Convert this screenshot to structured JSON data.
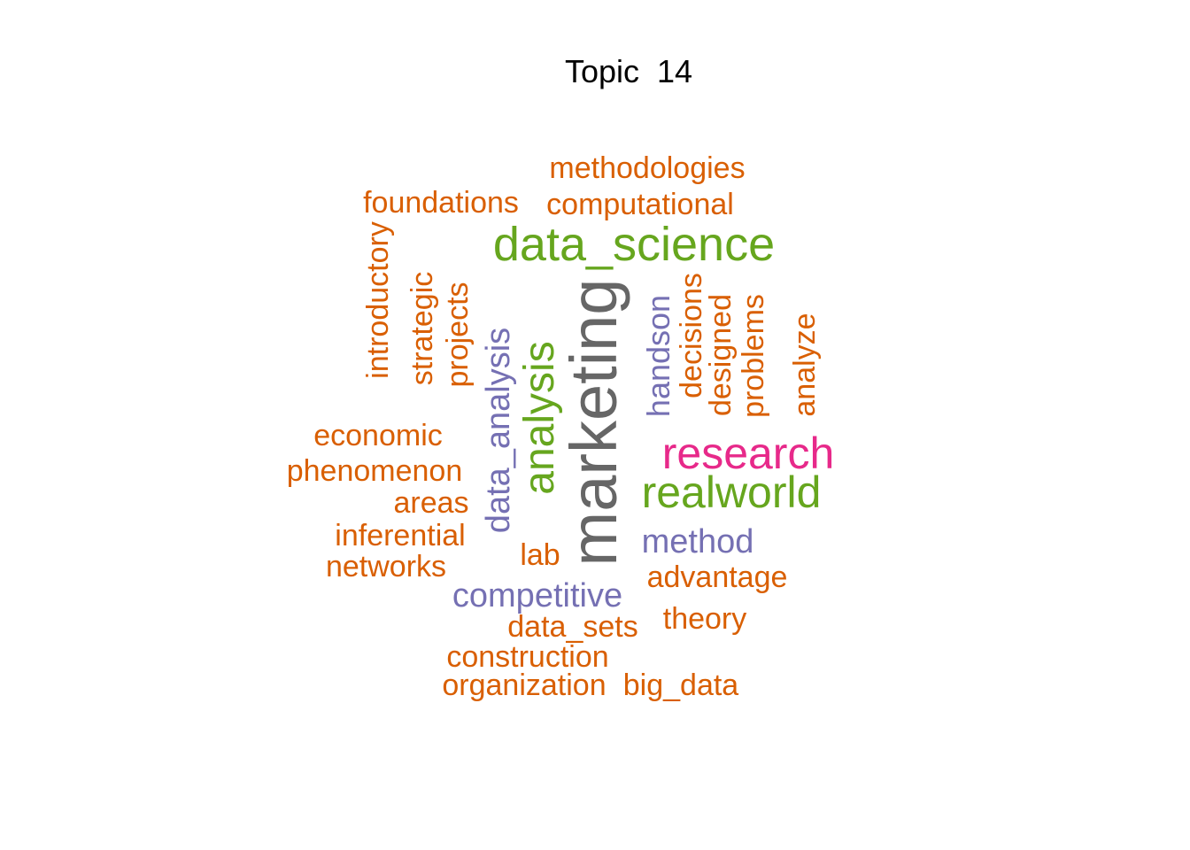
{
  "title": "Topic  14",
  "colors": {
    "orange": "#D95F02",
    "green": "#66A61E",
    "purple": "#7570B3",
    "pink": "#E7298A",
    "gray": "#666666"
  },
  "words": [
    {
      "id": "methodologies",
      "text": "methodologies",
      "color": "orange"
    },
    {
      "id": "foundations",
      "text": "foundations",
      "color": "orange"
    },
    {
      "id": "computational",
      "text": "computational",
      "color": "orange"
    },
    {
      "id": "data_science",
      "text": "data_science",
      "color": "green"
    },
    {
      "id": "introductory",
      "text": "introductory",
      "color": "orange"
    },
    {
      "id": "strategic",
      "text": "strategic",
      "color": "orange"
    },
    {
      "id": "projects",
      "text": "projects",
      "color": "orange"
    },
    {
      "id": "data_analysis",
      "text": "data_analysis",
      "color": "purple"
    },
    {
      "id": "analysis",
      "text": "analysis",
      "color": "green"
    },
    {
      "id": "marketing",
      "text": "marketing",
      "color": "gray"
    },
    {
      "id": "handson",
      "text": "handson",
      "color": "purple"
    },
    {
      "id": "decisions",
      "text": "decisions",
      "color": "orange"
    },
    {
      "id": "designed",
      "text": "designed",
      "color": "orange"
    },
    {
      "id": "problems",
      "text": "problems",
      "color": "orange"
    },
    {
      "id": "analyze",
      "text": "analyze",
      "color": "orange"
    },
    {
      "id": "economic",
      "text": "economic",
      "color": "orange"
    },
    {
      "id": "phenomenon",
      "text": "phenomenon",
      "color": "orange"
    },
    {
      "id": "research",
      "text": "research",
      "color": "pink"
    },
    {
      "id": "realworld",
      "text": "realworld",
      "color": "green"
    },
    {
      "id": "areas",
      "text": "areas",
      "color": "orange"
    },
    {
      "id": "inferential",
      "text": "inferential",
      "color": "orange"
    },
    {
      "id": "lab",
      "text": "lab",
      "color": "orange"
    },
    {
      "id": "method",
      "text": "method",
      "color": "purple"
    },
    {
      "id": "networks",
      "text": "networks",
      "color": "orange"
    },
    {
      "id": "advantage",
      "text": "advantage",
      "color": "orange"
    },
    {
      "id": "competitive",
      "text": "competitive",
      "color": "purple"
    },
    {
      "id": "theory",
      "text": "theory",
      "color": "orange"
    },
    {
      "id": "data_sets",
      "text": "data_sets",
      "color": "orange"
    },
    {
      "id": "construction",
      "text": "construction",
      "color": "orange"
    },
    {
      "id": "organization",
      "text": "organization",
      "color": "orange"
    },
    {
      "id": "big_data",
      "text": "big_data",
      "color": "orange"
    }
  ]
}
